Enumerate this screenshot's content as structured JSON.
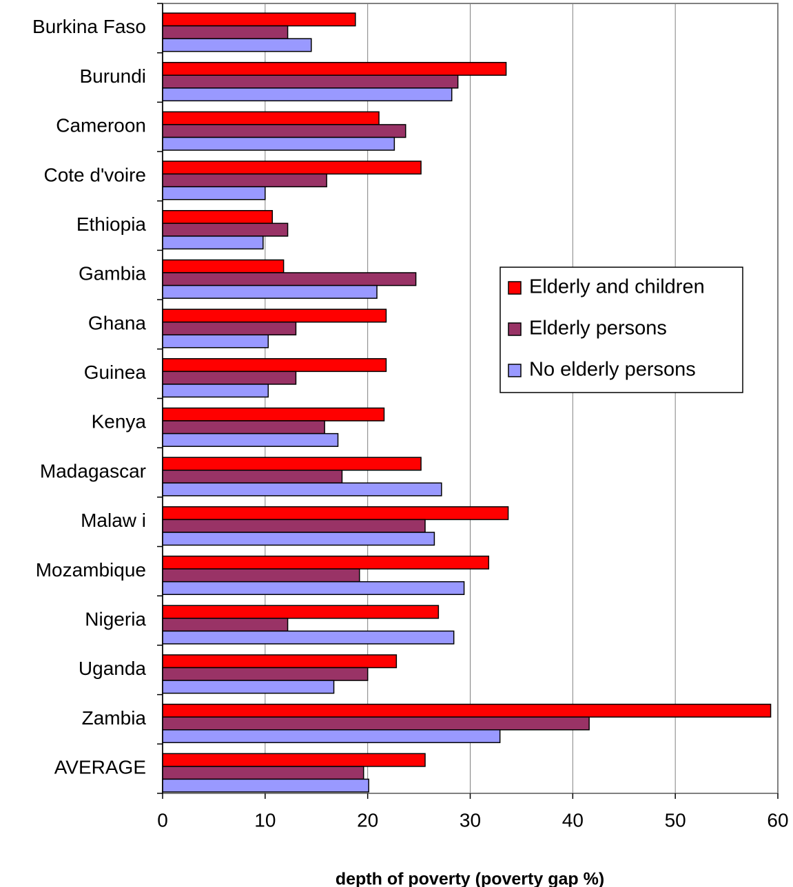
{
  "chart_data": {
    "type": "hbar",
    "x_label": "depth of poverty (poverty gap %)",
    "categories": [
      "Burkina Faso",
      "Burundi",
      "Cameroon",
      "Cote d'voire",
      "Ethiopia",
      "Gambia",
      "Ghana",
      "Guinea",
      "Kenya",
      "Madagascar",
      "Malaw i",
      "Mozambique",
      "Nigeria",
      "Uganda",
      "Zambia",
      "AVERAGE"
    ],
    "series": [
      {
        "name": "Elderly and children",
        "color": "#ff0000",
        "values": [
          18.8,
          33.5,
          21.1,
          25.2,
          10.7,
          11.8,
          21.8,
          21.8,
          21.6,
          25.2,
          33.7,
          31.8,
          26.9,
          22.8,
          59.3,
          25.6
        ]
      },
      {
        "name": "Elderly persons",
        "color": "#993366",
        "values": [
          12.2,
          28.8,
          23.7,
          16.0,
          12.2,
          24.7,
          13.0,
          13.0,
          15.8,
          17.5,
          25.6,
          19.2,
          12.2,
          20.0,
          41.6,
          19.6
        ]
      },
      {
        "name": "No elderly persons",
        "color": "#9999ff",
        "values": [
          14.5,
          28.2,
          22.6,
          10.0,
          9.8,
          20.9,
          10.3,
          10.3,
          17.1,
          27.2,
          26.5,
          29.4,
          28.4,
          16.7,
          32.9,
          20.1
        ]
      }
    ],
    "xlim": [
      0,
      60
    ],
    "xticks": [
      0,
      10,
      20,
      30,
      40,
      50,
      60
    ],
    "grid": true,
    "legend": "right"
  }
}
